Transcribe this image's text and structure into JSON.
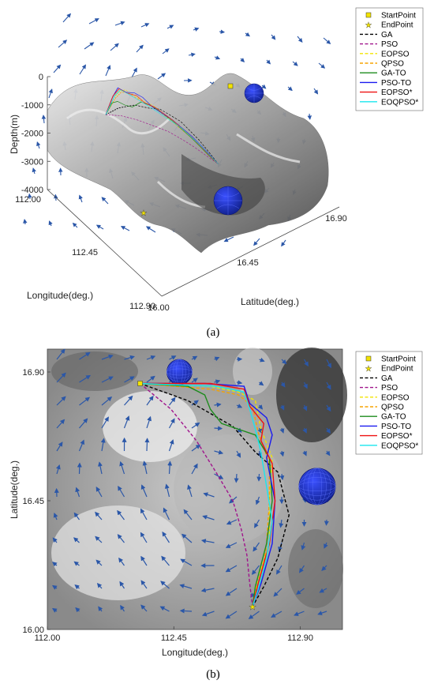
{
  "colors": {
    "GA": "#000000",
    "PSO": "#a0148c",
    "EOPSO": "#f2e300",
    "QPSO": "#f5a300",
    "GA-TO": "#1e8c1e",
    "PSO-TO": "#1a1af0",
    "EOPSO*": "#ee1111",
    "EOQPSO*": "#19e6ee",
    "vector": "#2b57a8",
    "sphere": "#1c2fd6",
    "start": "#f2e300"
  },
  "chart_data": [
    {
      "type": "line",
      "panel_caption": "(a)",
      "xlabel": "Longitude(deg.)",
      "ylabel": "Latitude(deg.)",
      "zlabel": "Depth(m)",
      "longitude_ticks": [
        "112.00",
        "112.45",
        "112.90"
      ],
      "latitude_ticks": [
        "16.00",
        "16.45",
        "16.90"
      ],
      "depth_ticks": [
        "0",
        "-1000",
        "-2000",
        "-3000",
        "-4000"
      ],
      "depth_values": [
        0,
        -1000,
        -2000,
        -3000,
        -4000
      ],
      "zlim": [
        -4000,
        0
      ],
      "legend": [
        "StartPoint",
        "EndPoint",
        "GA",
        "PSO",
        "EOPSO",
        "QPSO",
        "GA-TO",
        "PSO-TO",
        "EOPSO*",
        "EOQPSO*"
      ]
    },
    {
      "type": "line",
      "panel_caption": "(b)",
      "xlabel": "Longitude(deg.)",
      "ylabel": "Latitude(deg.)",
      "xlim": [
        112.0,
        113.05
      ],
      "ylim": [
        16.0,
        16.98
      ],
      "x_ticks": [
        112.0,
        112.45,
        112.9
      ],
      "x_tick_labels": [
        "112.00",
        "112.45",
        "112.90"
      ],
      "y_ticks": [
        16.0,
        16.45,
        16.9
      ],
      "y_tick_labels": [
        "16.00",
        "16.45",
        "16.90"
      ],
      "start_point": [
        112.33,
        16.86
      ],
      "end_point": [
        112.73,
        16.08
      ],
      "obstacles": [
        {
          "center": [
            112.47,
            16.9
          ],
          "radius": 0.045
        },
        {
          "center": [
            112.96,
            16.5
          ],
          "radius": 0.065
        }
      ],
      "legend": [
        "StartPoint",
        "EndPoint",
        "GA",
        "PSO",
        "EOPSO",
        "QPSO",
        "GA-TO",
        "PSO-TO",
        "EOPSO*",
        "EOQPSO*"
      ],
      "series": [
        {
          "name": "GA",
          "style": "dashed",
          "x": [
            112.33,
            112.5,
            112.66,
            112.74,
            112.82,
            112.86,
            112.82,
            112.77,
            112.73
          ],
          "y": [
            16.86,
            16.8,
            16.71,
            16.62,
            16.55,
            16.4,
            16.25,
            16.15,
            16.08
          ]
        },
        {
          "name": "PSO",
          "style": "dashed",
          "x": [
            112.33,
            112.44,
            112.53,
            112.6,
            112.66,
            112.69,
            112.71,
            112.72,
            112.73
          ],
          "y": [
            16.86,
            16.77,
            16.66,
            16.55,
            16.45,
            16.35,
            16.26,
            16.16,
            16.08
          ]
        },
        {
          "name": "EOPSO",
          "style": "dashed",
          "x": [
            112.33,
            112.58,
            112.68,
            112.74,
            112.76,
            112.8,
            112.79,
            112.79,
            112.75,
            112.73
          ],
          "y": [
            16.86,
            16.85,
            16.83,
            16.8,
            16.7,
            16.6,
            16.45,
            16.3,
            16.18,
            16.08
          ]
        },
        {
          "name": "QPSO",
          "style": "dashed",
          "x": [
            112.33,
            112.58,
            112.68,
            112.73,
            112.75,
            112.79,
            112.79,
            112.78,
            112.76,
            112.73
          ],
          "y": [
            16.86,
            16.84,
            16.82,
            16.78,
            16.69,
            16.58,
            16.45,
            16.3,
            16.16,
            16.08
          ]
        },
        {
          "name": "GA-TO",
          "style": "solid",
          "x": [
            112.33,
            112.5,
            112.56,
            112.58,
            112.62,
            112.74,
            112.79,
            112.8,
            112.78,
            112.74,
            112.73
          ],
          "y": [
            16.86,
            16.85,
            16.82,
            16.77,
            16.72,
            16.68,
            16.6,
            16.45,
            16.3,
            16.15,
            16.08
          ]
        },
        {
          "name": "PSO-TO",
          "style": "solid",
          "x": [
            112.33,
            112.56,
            112.7,
            112.72,
            112.78,
            112.8,
            112.78,
            112.81,
            112.8,
            112.76,
            112.73
          ],
          "y": [
            16.86,
            16.86,
            16.85,
            16.79,
            16.74,
            16.68,
            16.6,
            16.45,
            16.3,
            16.16,
            16.08
          ]
        },
        {
          "name": "EOPSO*",
          "style": "solid",
          "x": [
            112.33,
            112.58,
            112.7,
            112.72,
            112.77,
            112.76,
            112.8,
            112.81,
            112.79,
            112.75,
            112.73
          ],
          "y": [
            16.86,
            16.86,
            16.84,
            16.78,
            16.72,
            16.66,
            16.58,
            16.45,
            16.3,
            16.16,
            16.08
          ]
        },
        {
          "name": "EOQPSO*",
          "style": "solid",
          "x": [
            112.33,
            112.6,
            112.7,
            112.72,
            112.74,
            112.76,
            112.78,
            112.8,
            112.78,
            112.75,
            112.73
          ],
          "y": [
            16.86,
            16.85,
            16.83,
            16.77,
            16.7,
            16.62,
            16.5,
            16.38,
            16.25,
            16.14,
            16.08
          ]
        }
      ]
    }
  ]
}
